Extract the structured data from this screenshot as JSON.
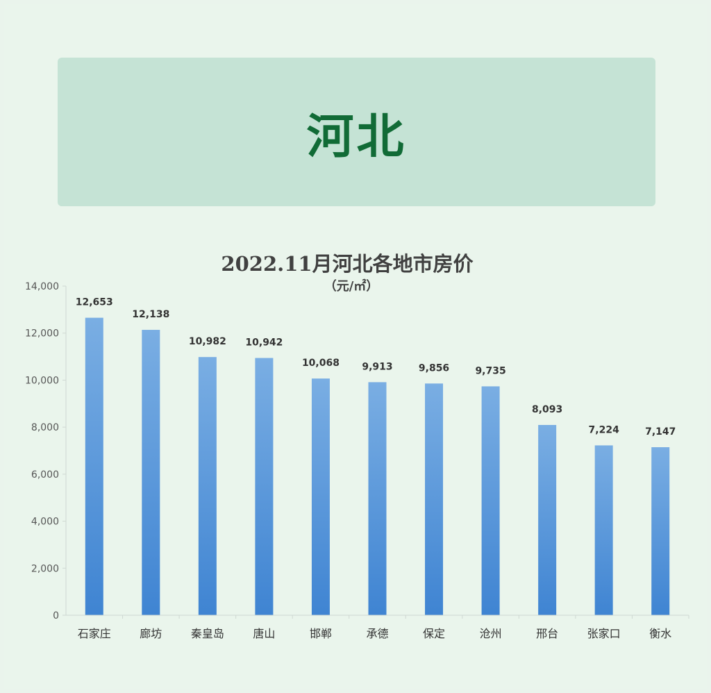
{
  "header": {
    "title": "河北"
  },
  "chart_data": {
    "type": "bar",
    "title": "2022.11月河北各地市房价",
    "subtitle": "（元/㎡）",
    "xlabel": "",
    "ylabel": "",
    "ylim": [
      0,
      14000
    ],
    "yticks": [
      0,
      2000,
      4000,
      6000,
      8000,
      10000,
      12000,
      14000
    ],
    "ytick_labels": [
      "0",
      "2,000",
      "4,000",
      "6,000",
      "8,000",
      "10,000",
      "12,000",
      "14,000"
    ],
    "categories": [
      "石家庄",
      "廊坊",
      "秦皇岛",
      "唐山",
      "邯郸",
      "承德",
      "保定",
      "沧州",
      "邢台",
      "张家口",
      "衡水"
    ],
    "values": [
      12653,
      12138,
      10982,
      10942,
      10068,
      9913,
      9856,
      9735,
      8093,
      7224,
      7147
    ],
    "data_labels": [
      "12,653",
      "12,138",
      "10,982",
      "10,942",
      "10,068",
      "9,913",
      "9,856",
      "9,735",
      "8,093",
      "7,224",
      "7,147"
    ],
    "grid": false,
    "legend": "none",
    "bar_color_top": "#7aaee3",
    "bar_color_bottom": "#3f84d2"
  }
}
